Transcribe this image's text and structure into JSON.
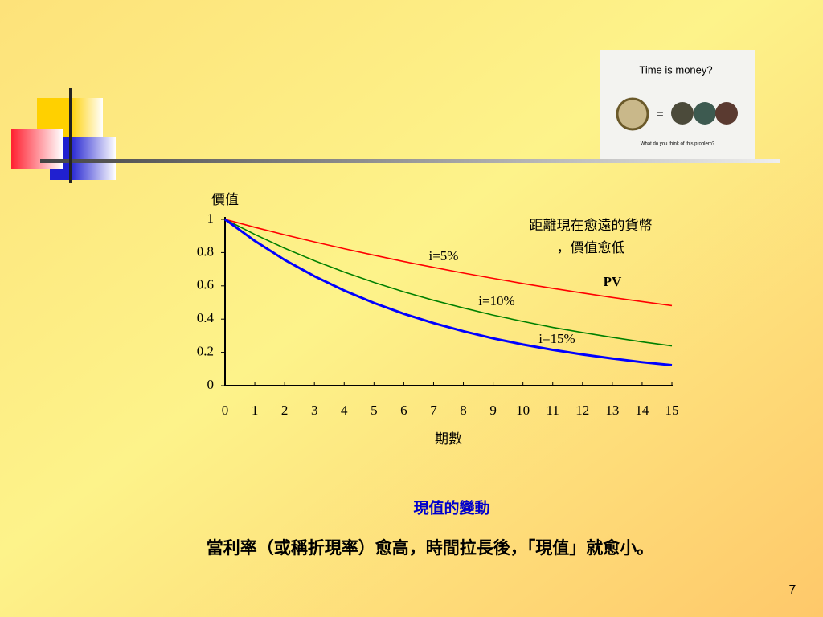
{
  "chart_data": {
    "type": "line",
    "y_label": "價值",
    "x_label": "期數",
    "annotations": [
      "距離現在愈遠的貨幣",
      "，價值愈低",
      "PV"
    ],
    "x": [
      0,
      1,
      2,
      3,
      4,
      5,
      6,
      7,
      8,
      9,
      10,
      11,
      12,
      13,
      14,
      15
    ],
    "series": [
      {
        "name": "i=5%",
        "color": "#ff0000",
        "values": [
          1,
          0.952,
          0.907,
          0.864,
          0.823,
          0.784,
          0.746,
          0.711,
          0.677,
          0.645,
          0.614,
          0.585,
          0.557,
          0.53,
          0.505,
          0.481
        ]
      },
      {
        "name": "i=10%",
        "color": "#008000",
        "values": [
          1,
          0.909,
          0.826,
          0.751,
          0.683,
          0.621,
          0.564,
          0.513,
          0.467,
          0.424,
          0.386,
          0.35,
          0.319,
          0.29,
          0.263,
          0.239
        ]
      },
      {
        "name": "i=15%",
        "color": "#0000ff",
        "values": [
          1,
          0.87,
          0.756,
          0.658,
          0.572,
          0.497,
          0.432,
          0.376,
          0.327,
          0.284,
          0.247,
          0.215,
          0.187,
          0.163,
          0.141,
          0.123
        ]
      }
    ],
    "xlim": [
      0,
      15
    ],
    "ylim": [
      0,
      1
    ],
    "xticks": [
      0,
      1,
      2,
      3,
      4,
      5,
      6,
      7,
      8,
      9,
      10,
      11,
      12,
      13,
      14,
      15
    ],
    "yticks": [
      0,
      0.2,
      0.4,
      0.6,
      0.8,
      1
    ]
  },
  "image": {
    "title": "Time is money?",
    "symbol": "=",
    "caption": "What do you think of this problem?"
  },
  "caption": "現值的變動",
  "text": "當利率（或稱折現率）愈高，時間拉長後，「現值」就愈小。",
  "page_number": "7"
}
